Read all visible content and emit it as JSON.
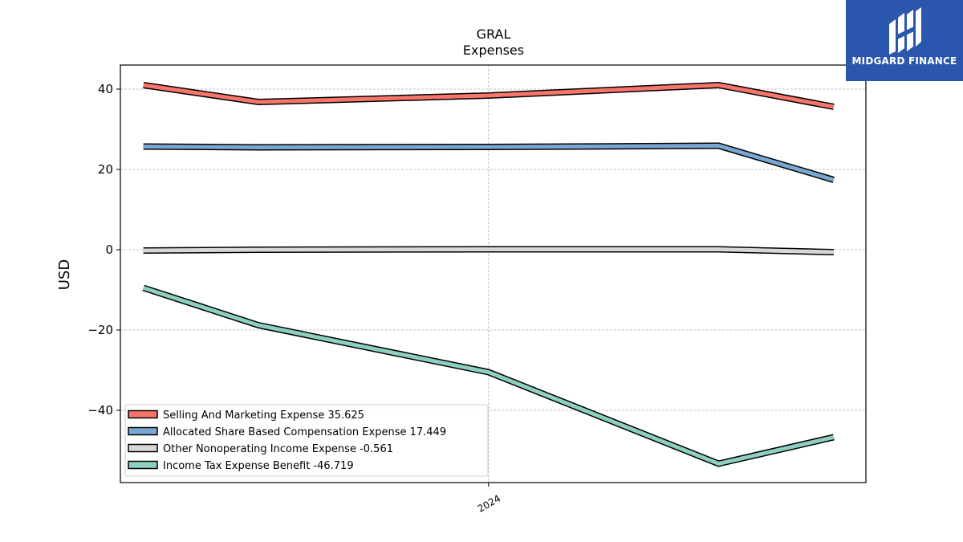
{
  "brand": {
    "name": "MIDGARD FINANCE",
    "bg_color": "#2a57ad"
  },
  "chart_data": {
    "type": "line",
    "title": "GRAL",
    "subtitle": "Expenses",
    "xlabel": "",
    "ylabel": "USD",
    "x": [
      2023.25,
      2023.5,
      2023.75,
      2024.0,
      2024.25,
      2024.5,
      2024.75
    ],
    "x_ticks": [
      {
        "label": "2024",
        "x": 2024.0
      }
    ],
    "xlim": [
      2023.2,
      2024.82
    ],
    "ylim": [
      -58,
      46
    ],
    "y_ticks": [
      40,
      20,
      0,
      -20,
      -40
    ],
    "grid": true,
    "legend_position": "bottom-left",
    "series": [
      {
        "name": "Selling And Marketing Expense",
        "latest": "35.625",
        "color": "#f8756c",
        "x": [
          2023.25,
          2023.5,
          2024.0,
          2024.5,
          2024.75
        ],
        "values": [
          41.0,
          36.8,
          38.4,
          41.0,
          35.6
        ]
      },
      {
        "name": "Allocated Share Based Compensation Expense",
        "latest": "17.449",
        "color": "#7aa6d2",
        "x": [
          2023.25,
          2023.5,
          2024.0,
          2024.5,
          2024.75
        ],
        "values": [
          25.7,
          25.5,
          25.6,
          25.9,
          17.4
        ]
      },
      {
        "name": "Other Nonoperating Income Expense",
        "latest": "-0.561",
        "color": "#d7d7d7",
        "x": [
          2023.25,
          2023.5,
          2024.0,
          2024.5,
          2024.75
        ],
        "values": [
          -0.2,
          0.0,
          0.1,
          0.1,
          -0.6
        ]
      },
      {
        "name": "Income Tax Expense Benefit",
        "latest": "-46.719",
        "color": "#8dcfc0",
        "x": [
          2023.25,
          2023.5,
          2024.0,
          2024.5,
          2024.75
        ],
        "values": [
          -9.5,
          -18.8,
          -30.5,
          -53.3,
          -46.7
        ]
      }
    ]
  }
}
